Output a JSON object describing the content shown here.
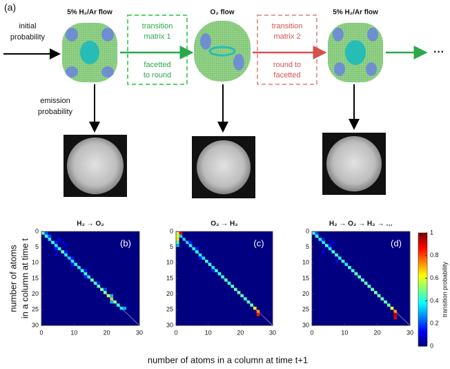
{
  "figure": {
    "label": "(a)",
    "states": [
      {
        "title": "5% H₂/Ar flow"
      },
      {
        "title": "O₂ flow"
      },
      {
        "title": "5% H₂/Ar flow"
      }
    ],
    "initial": [
      "initial",
      "probability"
    ],
    "transitions": [
      {
        "name": [
          "transition",
          "matrix 1"
        ],
        "description": [
          "facetted",
          "to round"
        ]
      },
      {
        "name": [
          "transition",
          "matrix 2"
        ],
        "description": [
          "round to",
          "facetted"
        ]
      }
    ],
    "emission": [
      "emission",
      "probability"
    ],
    "continuation": "···"
  },
  "chart_data": [
    {
      "type": "heatmap",
      "title": "H₂ → O₂",
      "panel": "(b)",
      "ylabel": [
        "number of atoms",
        "in a column at time t"
      ],
      "xlim": [
        0,
        30
      ],
      "ylim": [
        0,
        30
      ],
      "xticks": [
        0,
        10,
        20,
        30
      ],
      "yticks": [
        0,
        5,
        10,
        15,
        20,
        25,
        30
      ],
      "cells": [
        [
          0,
          0,
          0.45
        ],
        [
          0,
          1,
          0.2
        ],
        [
          1,
          1,
          0.4
        ],
        [
          1,
          2,
          0.2
        ],
        [
          2,
          2,
          0.35
        ],
        [
          3,
          3,
          0.4
        ],
        [
          3,
          4,
          0.15
        ],
        [
          4,
          4,
          0.35
        ],
        [
          5,
          5,
          0.4
        ],
        [
          5,
          4,
          0.15
        ],
        [
          6,
          6,
          0.45
        ],
        [
          6,
          7,
          0.15
        ],
        [
          7,
          7,
          0.35
        ],
        [
          8,
          8,
          0.3
        ],
        [
          8,
          9,
          0.15
        ],
        [
          9,
          9,
          0.35
        ],
        [
          10,
          10,
          0.4
        ],
        [
          10,
          9,
          0.15
        ],
        [
          11,
          11,
          0.35
        ],
        [
          12,
          12,
          0.4
        ],
        [
          12,
          13,
          0.15
        ],
        [
          13,
          13,
          0.4
        ],
        [
          14,
          14,
          0.35
        ],
        [
          14,
          13,
          0.15
        ],
        [
          15,
          15,
          0.45
        ],
        [
          16,
          16,
          0.4
        ],
        [
          16,
          17,
          0.15
        ],
        [
          17,
          17,
          0.45
        ],
        [
          18,
          18,
          0.5
        ],
        [
          18,
          19,
          0.2
        ],
        [
          19,
          19,
          0.5
        ],
        [
          20,
          20,
          0.55
        ],
        [
          20,
          21,
          0.3
        ],
        [
          21,
          21,
          0.7
        ],
        [
          22,
          22,
          0.5
        ],
        [
          22,
          21,
          0.3
        ],
        [
          23,
          23,
          0.4
        ],
        [
          24,
          24,
          0.35
        ],
        [
          24,
          25,
          0.3
        ],
        [
          2,
          5,
          0.1
        ],
        [
          4,
          7,
          0.08
        ],
        [
          7,
          4,
          0.1
        ],
        [
          3,
          6,
          0.08
        ]
      ]
    },
    {
      "type": "heatmap",
      "title": "O₂ → H₂",
      "panel": "(c)",
      "xlabel": "number of atoms in a column at time t+1",
      "xlim": [
        0,
        30
      ],
      "ylim": [
        0,
        30
      ],
      "xticks": [
        0,
        10,
        20,
        30
      ],
      "yticks": [
        0,
        5,
        10,
        15,
        20,
        25,
        30
      ],
      "cells": [
        [
          0,
          0,
          0.55
        ],
        [
          0,
          1,
          0.9
        ],
        [
          1,
          0,
          0.6
        ],
        [
          2,
          0,
          0.65
        ],
        [
          3,
          0,
          0.45
        ],
        [
          4,
          0,
          0.3
        ],
        [
          1,
          1,
          0.3
        ],
        [
          2,
          2,
          0.3
        ],
        [
          3,
          3,
          0.3
        ],
        [
          4,
          4,
          0.35
        ],
        [
          5,
          5,
          0.35
        ],
        [
          6,
          6,
          0.4
        ],
        [
          7,
          7,
          0.35
        ],
        [
          8,
          8,
          0.35
        ],
        [
          9,
          9,
          0.4
        ],
        [
          10,
          10,
          0.4
        ],
        [
          11,
          11,
          0.35
        ],
        [
          12,
          12,
          0.4
        ],
        [
          13,
          13,
          0.4
        ],
        [
          14,
          14,
          0.4
        ],
        [
          15,
          15,
          0.45
        ],
        [
          16,
          16,
          0.4
        ],
        [
          17,
          17,
          0.45
        ],
        [
          18,
          18,
          0.45
        ],
        [
          19,
          19,
          0.45
        ],
        [
          20,
          20,
          0.45
        ],
        [
          21,
          21,
          0.4
        ],
        [
          22,
          22,
          0.45
        ],
        [
          23,
          23,
          0.45
        ],
        [
          24,
          24,
          0.65
        ],
        [
          25,
          25,
          0.75
        ],
        [
          26,
          25,
          0.85
        ],
        [
          5,
          6,
          0.15
        ],
        [
          8,
          7,
          0.15
        ],
        [
          12,
          11,
          0.15
        ],
        [
          3,
          4,
          0.15
        ]
      ]
    },
    {
      "type": "heatmap",
      "title": "H₂ → O₂ → H₂ → …",
      "panel": "(d)",
      "xlim": [
        0,
        30
      ],
      "ylim": [
        0,
        30
      ],
      "xticks": [
        0,
        10,
        20,
        30
      ],
      "yticks": [
        0,
        5,
        10,
        15,
        20,
        25,
        30
      ],
      "clim": [
        0,
        1
      ],
      "cticks": [
        0,
        0.2,
        0.4,
        0.6,
        0.8,
        1
      ],
      "clabel": "transition probability",
      "cells": [
        [
          0,
          0,
          0.4
        ],
        [
          0,
          1,
          0.2
        ],
        [
          1,
          1,
          0.4
        ],
        [
          2,
          2,
          0.35
        ],
        [
          2,
          3,
          0.15
        ],
        [
          3,
          3,
          0.35
        ],
        [
          4,
          4,
          0.4
        ],
        [
          4,
          5,
          0.15
        ],
        [
          5,
          5,
          0.35
        ],
        [
          6,
          6,
          0.4
        ],
        [
          7,
          7,
          0.4
        ],
        [
          8,
          8,
          0.35
        ],
        [
          9,
          9,
          0.4
        ],
        [
          10,
          10,
          0.35
        ],
        [
          11,
          11,
          0.4
        ],
        [
          12,
          12,
          0.4
        ],
        [
          13,
          13,
          0.45
        ],
        [
          14,
          14,
          0.4
        ],
        [
          15,
          15,
          0.45
        ],
        [
          16,
          16,
          0.45
        ],
        [
          17,
          17,
          0.45
        ],
        [
          18,
          18,
          0.45
        ],
        [
          19,
          19,
          0.5
        ],
        [
          20,
          20,
          0.45
        ],
        [
          21,
          21,
          0.45
        ],
        [
          22,
          22,
          0.45
        ],
        [
          23,
          23,
          0.45
        ],
        [
          24,
          24,
          0.6
        ],
        [
          25,
          25,
          0.75
        ],
        [
          26,
          25,
          0.95
        ],
        [
          27,
          25,
          0.9
        ],
        [
          3,
          6,
          0.1
        ],
        [
          6,
          3,
          0.1
        ],
        [
          9,
          7,
          0.1
        ]
      ]
    }
  ]
}
